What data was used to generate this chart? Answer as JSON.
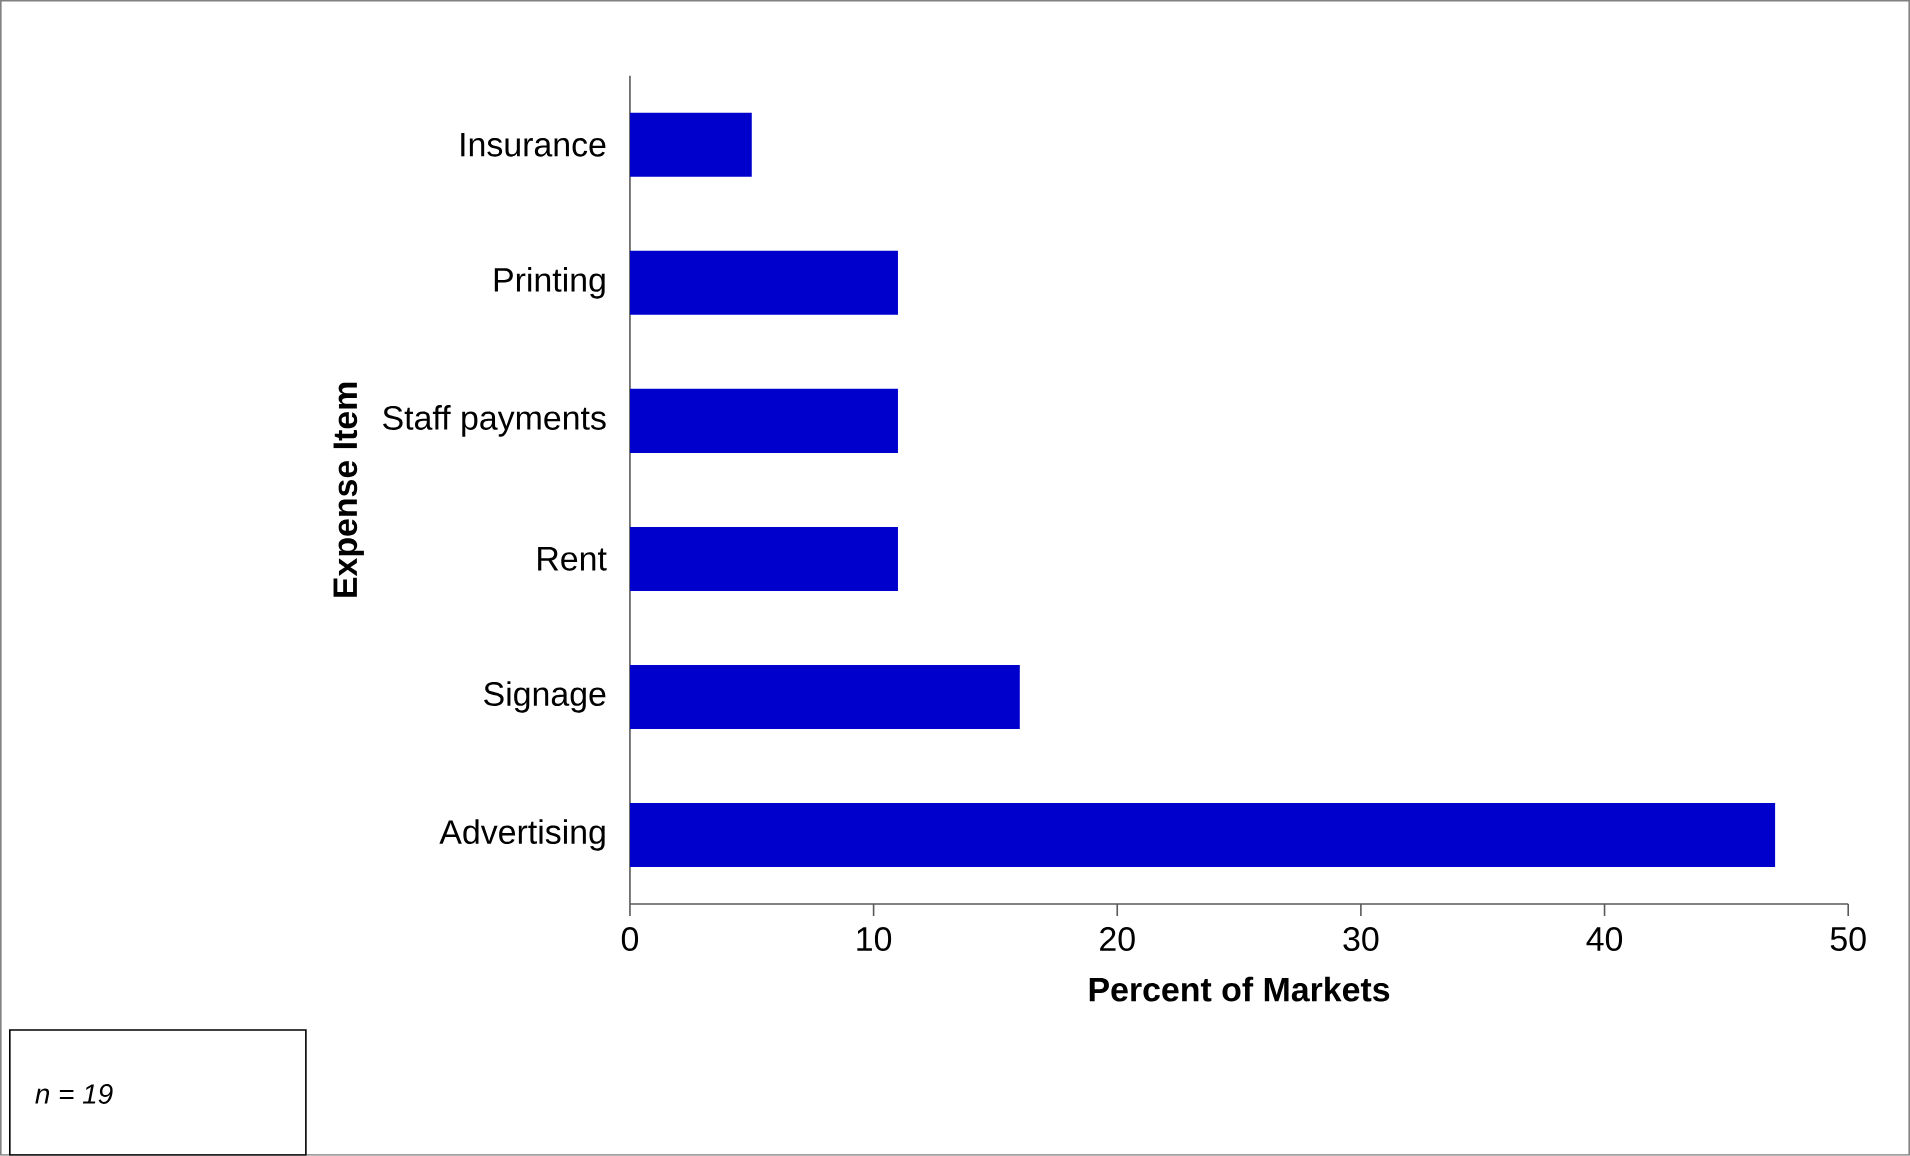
{
  "chart_data": {
    "type": "bar",
    "orientation": "horizontal",
    "categories": [
      "Insurance",
      "Printing",
      "Staff payments",
      "Rent",
      "Signage",
      "Advertising"
    ],
    "values": [
      5,
      11,
      11,
      11,
      16,
      47
    ],
    "color": "#0000cc",
    "xlabel": "Percent of Markets",
    "ylabel": "Expense Item",
    "xlim": [
      0,
      50
    ],
    "xticks": [
      0,
      10,
      20,
      30,
      40,
      50
    ],
    "annotations": [
      "n = 19"
    ]
  }
}
